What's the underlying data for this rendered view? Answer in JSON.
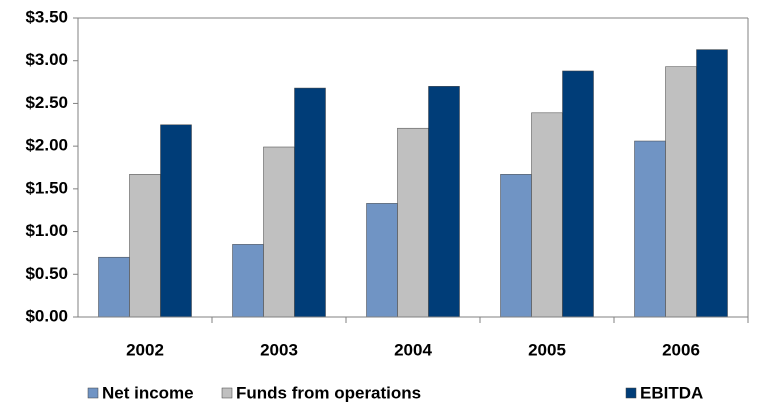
{
  "chart_data": {
    "type": "bar",
    "categories": [
      "2002",
      "2003",
      "2004",
      "2005",
      "2006"
    ],
    "series": [
      {
        "name": "Net income",
        "color": "#7094c4",
        "values": [
          0.7,
          0.85,
          1.33,
          1.67,
          2.06
        ]
      },
      {
        "name": "Funds from operations",
        "color": "#c0c0c0",
        "values": [
          1.67,
          1.99,
          2.21,
          2.39,
          2.93
        ]
      },
      {
        "name": "EBITDA",
        "color": "#003d78",
        "values": [
          2.25,
          2.68,
          2.7,
          2.88,
          3.13
        ]
      }
    ],
    "ylim": [
      0,
      3.5
    ],
    "yticks": [
      {
        "value": 0,
        "label": "$0.00"
      },
      {
        "value": 0.5,
        "label": "$0.50"
      },
      {
        "value": 1,
        "label": "$1.00"
      },
      {
        "value": 1.5,
        "label": "$1.50"
      },
      {
        "value": 2,
        "label": "$2.00"
      },
      {
        "value": 2.5,
        "label": "$2.50"
      },
      {
        "value": 3,
        "label": "$3.00"
      },
      {
        "value": 3.5,
        "label": "$3.50"
      }
    ],
    "grid": false,
    "legend": "bottom"
  }
}
